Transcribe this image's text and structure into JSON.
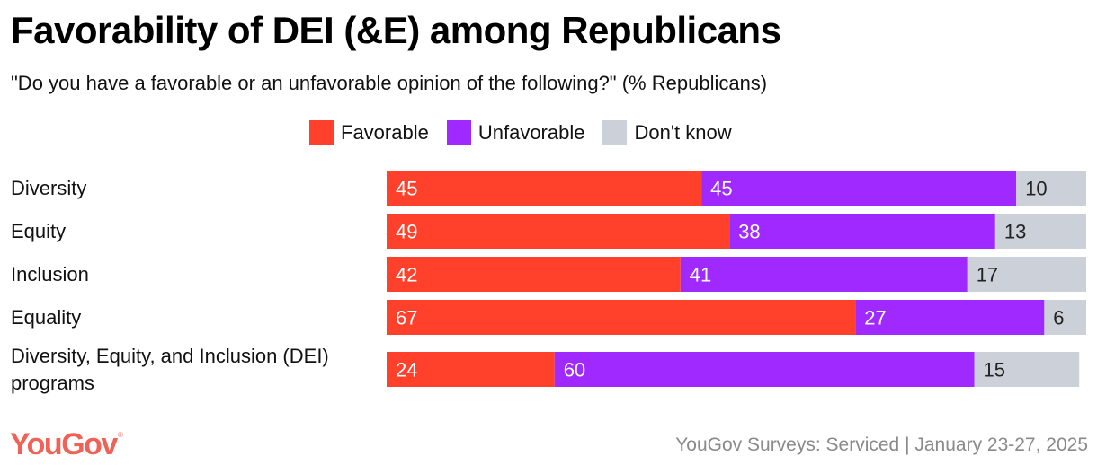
{
  "chart_data": {
    "type": "bar",
    "orientation": "horizontal",
    "stacked": true,
    "title": "Favorability of DEI (&E) among Republicans",
    "subtitle": "\"Do you have a favorable or an unfavorable opinion of the following?\" (% Republicans)",
    "categories": [
      "Diversity",
      "Equity",
      "Inclusion",
      "Equality",
      "Diversity, Equity, and Inclusion (DEI) programs"
    ],
    "category_lines": [
      [
        "Diversity"
      ],
      [
        "Equity"
      ],
      [
        "Inclusion"
      ],
      [
        "Equality"
      ],
      [
        "Diversity, Equity, and Inclusion (DEI)",
        "programs"
      ]
    ],
    "series": [
      {
        "name": "Favorable",
        "color": "#ff412c",
        "label_color": "#ffffff",
        "values": [
          45,
          49,
          42,
          67,
          24
        ]
      },
      {
        "name": "Unfavorable",
        "color": "#9f29ff",
        "label_color": "#ffffff",
        "values": [
          45,
          38,
          41,
          27,
          60
        ]
      },
      {
        "name": "Don't know",
        "color": "#cbd0d9",
        "label_color": "#222222",
        "values": [
          10,
          13,
          17,
          6,
          15
        ]
      }
    ],
    "xlim": [
      0,
      100
    ],
    "xlabel": "",
    "ylabel": "",
    "grid": false,
    "legend_position": "top-center"
  },
  "footer": {
    "logo": "YouGov",
    "logo_mark": "®",
    "source": "YouGov Surveys: Serviced | January 23-27, 2025"
  }
}
